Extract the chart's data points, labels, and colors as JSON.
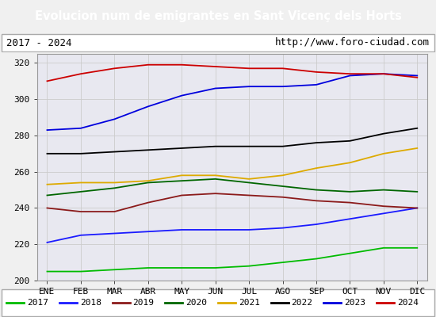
{
  "title": "Evolucion num de emigrantes en Sant Vicenç dels Horts",
  "subtitle_left": "2017 - 2024",
  "subtitle_right": "http://www.foro-ciudad.com",
  "months": [
    "ENE",
    "FEB",
    "MAR",
    "ABR",
    "MAY",
    "JUN",
    "JUL",
    "AGO",
    "SEP",
    "OCT",
    "NOV",
    "DIC"
  ],
  "years": [
    "2017",
    "2018",
    "2019",
    "2020",
    "2021",
    "2022",
    "2023",
    "2024"
  ],
  "colors": {
    "2017": "#00bb00",
    "2018": "#1a1aff",
    "2019": "#8b1a1a",
    "2020": "#006600",
    "2021": "#ddaa00",
    "2022": "#000000",
    "2023": "#0000dd",
    "2024": "#cc0000"
  },
  "data": {
    "2017": [
      205,
      205,
      206,
      207,
      207,
      207,
      208,
      210,
      212,
      215,
      218,
      218
    ],
    "2018": [
      221,
      225,
      226,
      227,
      228,
      228,
      228,
      229,
      231,
      234,
      237,
      240
    ],
    "2019": [
      240,
      238,
      238,
      243,
      247,
      248,
      247,
      246,
      244,
      243,
      241,
      240
    ],
    "2020": [
      247,
      249,
      251,
      254,
      255,
      256,
      254,
      252,
      250,
      249,
      250,
      249
    ],
    "2021": [
      253,
      254,
      254,
      255,
      258,
      258,
      256,
      258,
      262,
      265,
      270,
      273
    ],
    "2022": [
      270,
      270,
      271,
      272,
      273,
      274,
      274,
      274,
      276,
      277,
      281,
      284
    ],
    "2023": [
      283,
      284,
      289,
      296,
      302,
      306,
      307,
      307,
      308,
      313,
      314,
      313
    ],
    "2024": [
      310,
      314,
      317,
      319,
      319,
      318,
      317,
      317,
      315,
      314,
      314,
      312
    ]
  },
  "ylim": [
    200,
    325
  ],
  "yticks": [
    200,
    220,
    240,
    260,
    280,
    300,
    320
  ],
  "background_color": "#f0f0f0",
  "title_bg_color": "#5080c0",
  "title_color": "#ffffff",
  "plot_bg_color": "#e8e8f0",
  "grid_color": "#cccccc"
}
